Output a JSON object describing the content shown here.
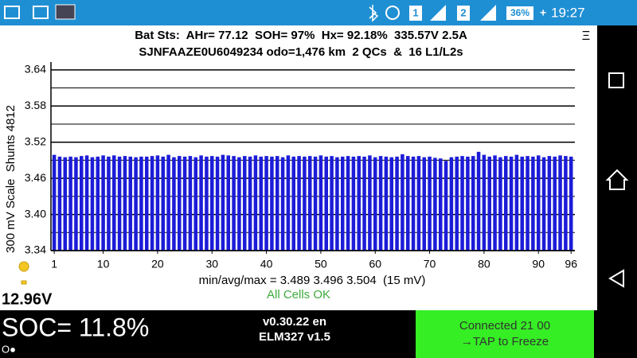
{
  "status_bar": {
    "sim1": "1",
    "sim2": "2",
    "battery": "36%",
    "time": "19:27"
  },
  "header": {
    "line1": "Bat Sts:  AHr= 77.12  SOH= 97%  Hx= 92.18%  335.57V 2.5A",
    "line2": "SJNFAAZE0U6049234 odo=1,476 km  2 QCs  &  16 L1/L2s",
    "menu": "Ξ"
  },
  "chart_data": {
    "type": "bar",
    "y_label": "300 mV Scale  Shunts 4812",
    "color": "#1c1cd8",
    "x": [
      1,
      2,
      3,
      4,
      5,
      6,
      7,
      8,
      9,
      10,
      11,
      12,
      13,
      14,
      15,
      16,
      17,
      18,
      19,
      20,
      21,
      22,
      23,
      24,
      25,
      26,
      27,
      28,
      29,
      30,
      31,
      32,
      33,
      34,
      35,
      36,
      37,
      38,
      39,
      40,
      41,
      42,
      43,
      44,
      45,
      46,
      47,
      48,
      49,
      50,
      51,
      52,
      53,
      54,
      55,
      56,
      57,
      58,
      59,
      60,
      61,
      62,
      63,
      64,
      65,
      66,
      67,
      68,
      69,
      70,
      71,
      72,
      73,
      74,
      75,
      76,
      77,
      78,
      79,
      80,
      81,
      82,
      83,
      84,
      85,
      86,
      87,
      88,
      89,
      90,
      91,
      92,
      93,
      94,
      95,
      96
    ],
    "values": [
      3.499,
      3.496,
      3.495,
      3.496,
      3.495,
      3.497,
      3.498,
      3.495,
      3.496,
      3.498,
      3.496,
      3.498,
      3.496,
      3.497,
      3.496,
      3.495,
      3.496,
      3.496,
      3.497,
      3.498,
      3.496,
      3.499,
      3.495,
      3.497,
      3.496,
      3.497,
      3.495,
      3.498,
      3.496,
      3.497,
      3.496,
      3.499,
      3.498,
      3.497,
      3.495,
      3.497,
      3.496,
      3.498,
      3.496,
      3.497,
      3.496,
      3.497,
      3.495,
      3.498,
      3.496,
      3.497,
      3.496,
      3.497,
      3.496,
      3.498,
      3.496,
      3.497,
      3.495,
      3.496,
      3.497,
      3.496,
      3.497,
      3.496,
      3.498,
      3.495,
      3.497,
      3.496,
      3.495,
      3.496,
      3.5,
      3.497,
      3.496,
      3.497,
      3.495,
      3.496,
      3.494,
      3.493,
      3.489,
      3.495,
      3.496,
      3.497,
      3.496,
      3.497,
      3.504,
      3.499,
      3.496,
      3.498,
      3.495,
      3.497,
      3.496,
      3.499,
      3.496,
      3.497,
      3.496,
      3.498,
      3.495,
      3.497,
      3.496,
      3.498,
      3.497,
      3.496
    ],
    "xlim": [
      0.4,
      96.7
    ],
    "xticks": [
      1,
      10,
      20,
      30,
      40,
      50,
      60,
      70,
      80,
      90,
      96
    ],
    "ylim": [
      3.34,
      3.653
    ],
    "yticks": [
      {
        "value": 3.34,
        "label": "3.34"
      },
      {
        "value": 3.4,
        "label": "3.40"
      },
      3.46,
      3.52,
      3.58,
      3.64
    ],
    "minor_yticks": [
      3.37,
      3.43,
      3.49,
      3.55,
      3.61
    ],
    "grid": true
  },
  "stats": "min/avg/max = 3.489 3.496 3.504  (15 mV)",
  "cell_status": "All Cells OK",
  "voltage": "12.96V",
  "footer": {
    "soc": "SOC= 11.8%",
    "indicator": "O●",
    "version": "v0.30.22 en",
    "adapter": "ELM327 v1.5",
    "connection": "Connected 21 00",
    "action": "→TAP to Freeze"
  }
}
